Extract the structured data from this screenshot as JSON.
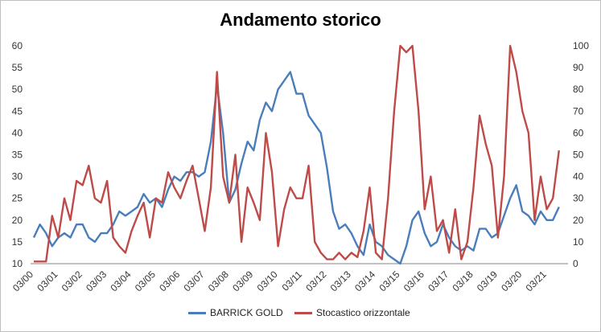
{
  "chart_data": {
    "type": "line",
    "title": "Andamento storico",
    "x_ticks": [
      "03/00",
      "03/01",
      "03/02",
      "03/03",
      "03/04",
      "03/05",
      "03/06",
      "03/07",
      "03/08",
      "03/09",
      "03/10",
      "03/11",
      "03/12",
      "03/13",
      "03/14",
      "03/15",
      "03/16",
      "03/17",
      "03/18",
      "03/19",
      "03/20",
      "03/21"
    ],
    "y_left": {
      "min": 10,
      "max": 60,
      "ticks": [
        10,
        15,
        20,
        25,
        30,
        35,
        40,
        45,
        50,
        55,
        60
      ]
    },
    "y_right": {
      "min": 0,
      "max": 100,
      "ticks": [
        0,
        10,
        20,
        30,
        40,
        50,
        60,
        70,
        80,
        90,
        100
      ]
    },
    "grid": false,
    "legend_position": "bottom",
    "series": [
      {
        "name": "BARRICK GOLD",
        "axis": "left",
        "color": "#4a7ebb",
        "x": [
          0,
          0.25,
          0.5,
          0.75,
          1,
          1.25,
          1.5,
          1.75,
          2,
          2.25,
          2.5,
          2.75,
          3,
          3.25,
          3.5,
          3.75,
          4,
          4.25,
          4.5,
          4.75,
          5,
          5.25,
          5.5,
          5.75,
          6,
          6.25,
          6.5,
          6.75,
          7,
          7.25,
          7.5,
          7.75,
          8,
          8.25,
          8.5,
          8.75,
          9,
          9.25,
          9.5,
          9.75,
          10,
          10.25,
          10.5,
          10.75,
          11,
          11.25,
          11.5,
          11.75,
          12,
          12.25,
          12.5,
          12.75,
          13,
          13.25,
          13.5,
          13.75,
          14,
          14.25,
          14.5,
          14.75,
          15,
          15.25,
          15.5,
          15.75,
          16,
          16.25,
          16.5,
          16.75,
          17,
          17.25,
          17.5,
          17.75,
          18,
          18.25,
          18.5,
          18.75,
          19,
          19.25,
          19.5,
          19.75,
          20,
          20.25,
          20.5,
          20.75,
          21,
          21.25,
          21.5
        ],
        "values": [
          16,
          19,
          17,
          14,
          16,
          17,
          16,
          19,
          19,
          16,
          15,
          17,
          17,
          19,
          22,
          21,
          22,
          23,
          26,
          24,
          25,
          23,
          27,
          30,
          29,
          31,
          31,
          30,
          31,
          38,
          51,
          40,
          24,
          27,
          33,
          38,
          36,
          43,
          47,
          45,
          50,
          52,
          54,
          49,
          49,
          44,
          42,
          40,
          32,
          22,
          18,
          19,
          17,
          14,
          12,
          19,
          15,
          14,
          12,
          11,
          10,
          14,
          20,
          22,
          17,
          14,
          15,
          19,
          16,
          14,
          13,
          14,
          13,
          18,
          18,
          16,
          17,
          21,
          25,
          28,
          22,
          21,
          19,
          22,
          20,
          20,
          23
        ]
      },
      {
        "name": "Stocastico orizzontale",
        "axis": "right",
        "color": "#be4b48",
        "x": [
          0,
          0.25,
          0.5,
          0.75,
          1,
          1.25,
          1.5,
          1.75,
          2,
          2.25,
          2.5,
          2.75,
          3,
          3.25,
          3.5,
          3.75,
          4,
          4.25,
          4.5,
          4.75,
          5,
          5.25,
          5.5,
          5.75,
          6,
          6.25,
          6.5,
          6.75,
          7,
          7.25,
          7.5,
          7.75,
          8,
          8.25,
          8.5,
          8.75,
          9,
          9.25,
          9.5,
          9.75,
          10,
          10.25,
          10.5,
          10.75,
          11,
          11.25,
          11.5,
          11.75,
          12,
          12.25,
          12.5,
          12.75,
          13,
          13.25,
          13.5,
          13.75,
          14,
          14.25,
          14.5,
          14.75,
          15,
          15.25,
          15.5,
          15.75,
          16,
          16.25,
          16.5,
          16.75,
          17,
          17.25,
          17.5,
          17.75,
          18,
          18.25,
          18.5,
          18.75,
          19,
          19.25,
          19.5,
          19.75,
          20,
          20.25,
          20.5,
          20.75,
          21,
          21.25,
          21.5
        ],
        "values": [
          1,
          1,
          1,
          22,
          12,
          30,
          20,
          38,
          36,
          45,
          30,
          28,
          38,
          12,
          8,
          5,
          15,
          22,
          28,
          12,
          30,
          28,
          42,
          35,
          30,
          38,
          45,
          30,
          15,
          35,
          88,
          40,
          28,
          50,
          10,
          35,
          28,
          20,
          60,
          42,
          8,
          25,
          35,
          30,
          30,
          45,
          10,
          5,
          2,
          2,
          5,
          2,
          5,
          3,
          15,
          35,
          5,
          2,
          30,
          70,
          100,
          97,
          100,
          70,
          25,
          40,
          15,
          20,
          5,
          25,
          2,
          10,
          35,
          68,
          55,
          45,
          12,
          40,
          100,
          88,
          70,
          60,
          20,
          40,
          25,
          30,
          52
        ]
      }
    ]
  }
}
